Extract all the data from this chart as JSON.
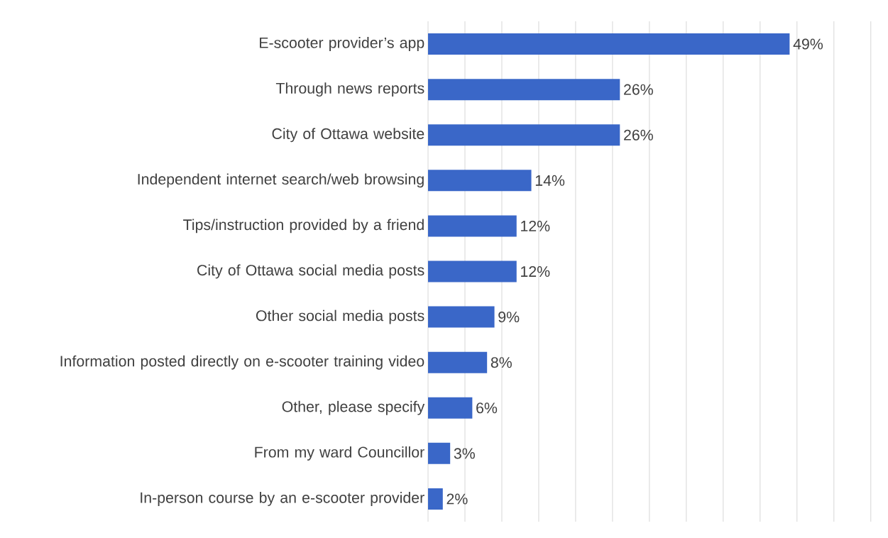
{
  "chart_data": {
    "type": "bar",
    "orientation": "horizontal",
    "categories": [
      "E-scooter provider’s app",
      "Through news reports",
      "City of Ottawa website",
      "Independent internet search/web browsing",
      "Tips/instruction provided by a friend",
      "City of Ottawa social media posts",
      "Other social media posts",
      "Information posted directly on e-scooter training video",
      "Other, please specify",
      "From my ward Councillor",
      "In-person course by an e-scooter provider"
    ],
    "values": [
      49,
      26,
      26,
      14,
      12,
      12,
      9,
      8,
      6,
      3,
      2
    ],
    "value_labels": [
      "49%",
      "26%",
      "26%",
      "14%",
      "12%",
      "12%",
      "9%",
      "8%",
      "6%",
      "3%",
      "2%"
    ],
    "color": "#3a67c8",
    "grid": "x",
    "tick_labels": "y"
  }
}
